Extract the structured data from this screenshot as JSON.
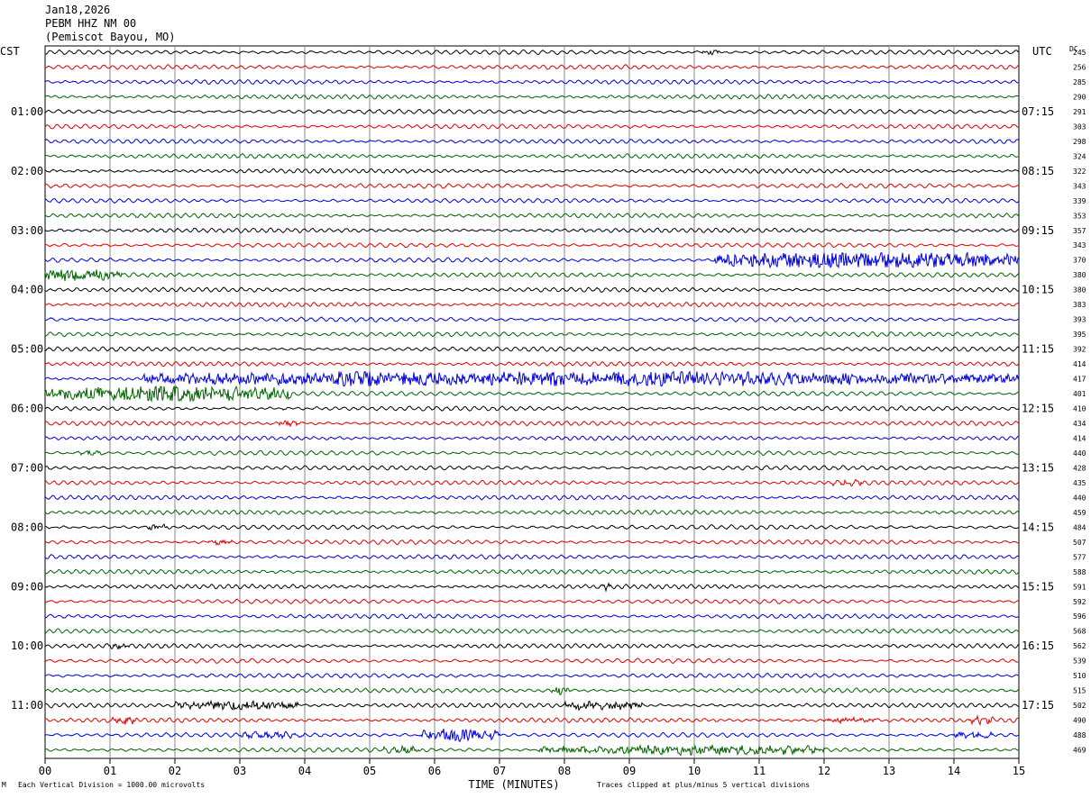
{
  "header": {
    "date": "Jan18,2026",
    "station": "PEBM HHZ NM 00",
    "location": "(Pemiscot Bayou, MO)"
  },
  "left_tz": "CST",
  "right_tz": "UTC",
  "dc_label": "DC",
  "xlabel": "TIME (MINUTES)",
  "footer_left": "Each Vertical Division = 1000.00 microvolts",
  "footer_right": "Traces clipped at plus/minus 5 vertical divisions",
  "corner_mark": "M",
  "chart_data": {
    "type": "line",
    "title": "PEBM HHZ NM 00 helicorder",
    "x_range_minutes": [
      0,
      15
    ],
    "x_ticks": [
      "00",
      "01",
      "02",
      "03",
      "04",
      "05",
      "06",
      "07",
      "08",
      "09",
      "10",
      "11",
      "12",
      "13",
      "14",
      "15"
    ],
    "line_minutes": 15,
    "trace_colors": [
      "#000000",
      "#e00000",
      "#0000e0",
      "#006400"
    ],
    "left_hour_labels": [
      "01:00",
      "02:00",
      "03:00",
      "04:00",
      "05:00",
      "06:00",
      "07:00",
      "08:00",
      "09:00",
      "10:00",
      "11:00"
    ],
    "right_hour_labels": [
      "07:15",
      "08:15",
      "09:15",
      "10:15",
      "11:15",
      "12:15",
      "13:15",
      "14:15",
      "15:15",
      "16:15",
      "17:15"
    ],
    "dc_offsets": [
      245,
      256,
      285,
      290,
      291,
      303,
      298,
      324,
      322,
      343,
      339,
      353,
      357,
      343,
      370,
      380,
      380,
      383,
      393,
      395,
      392,
      414,
      417,
      401,
      410,
      434,
      414,
      440,
      428,
      435,
      440,
      459,
      484,
      507,
      577,
      588,
      591,
      592,
      596,
      568,
      562,
      539,
      510,
      515,
      502,
      490,
      488,
      469
    ],
    "events": [
      {
        "line": 0,
        "start": 10.1,
        "end": 10.4,
        "amp": 0.4
      },
      {
        "line": 14,
        "start": 10.3,
        "end": 15.0,
        "amp": 1.6
      },
      {
        "line": 15,
        "start": 0.0,
        "end": 1.2,
        "amp": 1.1
      },
      {
        "line": 22,
        "start": 1.5,
        "end": 15.0,
        "amp": 1.3
      },
      {
        "line": 22,
        "start": 4.5,
        "end": 5.1,
        "amp": 1.8
      },
      {
        "line": 23,
        "start": 0.0,
        "end": 3.8,
        "amp": 1.6
      },
      {
        "line": 25,
        "start": 3.6,
        "end": 3.9,
        "amp": 0.5
      },
      {
        "line": 27,
        "start": 0.5,
        "end": 0.9,
        "amp": 0.4
      },
      {
        "line": 29,
        "start": 12.1,
        "end": 12.6,
        "amp": 0.4
      },
      {
        "line": 32,
        "start": 1.5,
        "end": 1.9,
        "amp": 0.4
      },
      {
        "line": 33,
        "start": 2.5,
        "end": 2.9,
        "amp": 0.4
      },
      {
        "line": 36,
        "start": 8.6,
        "end": 8.7,
        "amp": 0.7
      },
      {
        "line": 40,
        "start": 1.0,
        "end": 1.3,
        "amp": 0.5
      },
      {
        "line": 43,
        "start": 7.8,
        "end": 8.1,
        "amp": 0.6
      },
      {
        "line": 44,
        "start": 2.0,
        "end": 3.9,
        "amp": 0.8
      },
      {
        "line": 44,
        "start": 8.0,
        "end": 9.2,
        "amp": 0.8
      },
      {
        "line": 45,
        "start": 1.0,
        "end": 1.4,
        "amp": 0.6
      },
      {
        "line": 45,
        "start": 12.0,
        "end": 12.8,
        "amp": 0.4
      },
      {
        "line": 45,
        "start": 14.2,
        "end": 14.6,
        "amp": 0.7
      },
      {
        "line": 46,
        "start": 3.0,
        "end": 4.0,
        "amp": 0.5
      },
      {
        "line": 46,
        "start": 5.8,
        "end": 7.0,
        "amp": 1.2
      },
      {
        "line": 46,
        "start": 14.0,
        "end": 14.6,
        "amp": 0.5
      },
      {
        "line": 47,
        "start": 5.2,
        "end": 5.8,
        "amp": 0.5
      },
      {
        "line": 47,
        "start": 7.6,
        "end": 12.0,
        "amp": 0.8
      }
    ]
  }
}
